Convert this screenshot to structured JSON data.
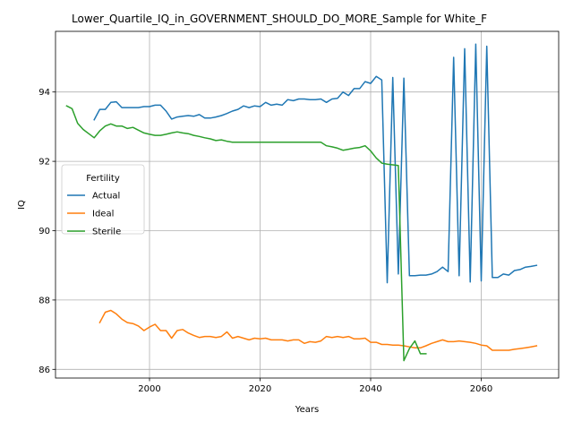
{
  "chart_data": {
    "type": "line",
    "title": "Lower_Quartile_IQ_in_GOVERNMENT_SHOULD_DO_MORE_Sample for White_F",
    "xlabel": "Years",
    "ylabel": "IQ",
    "xlim": [
      1983,
      2074
    ],
    "ylim": [
      85.75,
      95.75
    ],
    "xticks": [
      2000,
      2020,
      2040,
      2060
    ],
    "yticks": [
      86,
      88,
      90,
      92,
      94
    ],
    "grid": true,
    "legend": {
      "title": "Fertility",
      "placement": "center-left"
    },
    "series": [
      {
        "name": "Actual",
        "color": "#1f77b4",
        "x": [
          1990,
          1991,
          1992,
          1993,
          1994,
          1995,
          1996,
          1997,
          1998,
          1999,
          2000,
          2001,
          2002,
          2003,
          2004,
          2005,
          2006,
          2007,
          2008,
          2009,
          2010,
          2011,
          2012,
          2013,
          2014,
          2015,
          2016,
          2017,
          2018,
          2019,
          2020,
          2021,
          2022,
          2023,
          2024,
          2025,
          2026,
          2027,
          2028,
          2029,
          2030,
          2031,
          2032,
          2033,
          2034,
          2035,
          2036,
          2037,
          2038,
          2039,
          2040,
          2041,
          2042,
          2043,
          2044,
          2045,
          2046,
          2047,
          2048,
          2049,
          2050,
          2051,
          2052,
          2053,
          2054,
          2055,
          2056,
          2057,
          2058,
          2059,
          2060,
          2061,
          2062,
          2063,
          2064,
          2065,
          2066,
          2067,
          2068,
          2069,
          2070
        ],
        "y": [
          93.2,
          93.5,
          93.5,
          93.7,
          93.72,
          93.55,
          93.55,
          93.55,
          93.55,
          93.58,
          93.58,
          93.62,
          93.62,
          93.45,
          93.22,
          93.28,
          93.3,
          93.32,
          93.3,
          93.35,
          93.25,
          93.25,
          93.28,
          93.32,
          93.38,
          93.45,
          93.5,
          93.6,
          93.55,
          93.6,
          93.58,
          93.7,
          93.62,
          93.65,
          93.62,
          93.78,
          93.75,
          93.8,
          93.8,
          93.78,
          93.78,
          93.8,
          93.7,
          93.8,
          93.82,
          94.0,
          93.9,
          94.1,
          94.1,
          94.3,
          94.25,
          94.45,
          94.35,
          88.5,
          94.42,
          88.75,
          94.4,
          88.7,
          88.7,
          88.72,
          88.72,
          88.75,
          88.82,
          88.95,
          88.82,
          95.0,
          88.7,
          95.25,
          88.52,
          95.38,
          88.55,
          95.32,
          88.65,
          88.65,
          88.75,
          88.72,
          88.85,
          88.88,
          88.95,
          88.97,
          89.0
        ]
      },
      {
        "name": "Ideal",
        "color": "#ff7f0e",
        "x": [
          1991,
          1992,
          1993,
          1994,
          1995,
          1996,
          1997,
          1998,
          1999,
          2000,
          2001,
          2002,
          2003,
          2004,
          2005,
          2006,
          2007,
          2008,
          2009,
          2010,
          2011,
          2012,
          2013,
          2014,
          2015,
          2016,
          2017,
          2018,
          2019,
          2020,
          2021,
          2022,
          2023,
          2024,
          2025,
          2026,
          2027,
          2028,
          2029,
          2030,
          2031,
          2032,
          2033,
          2034,
          2035,
          2036,
          2037,
          2038,
          2039,
          2040,
          2041,
          2042,
          2043,
          2044,
          2045,
          2046,
          2047,
          2048,
          2049,
          2050,
          2051,
          2052,
          2053,
          2054,
          2055,
          2056,
          2057,
          2058,
          2059,
          2060,
          2061,
          2062,
          2063,
          2064,
          2065,
          2066,
          2067,
          2068,
          2069,
          2070
        ],
        "y": [
          87.35,
          87.65,
          87.7,
          87.6,
          87.45,
          87.35,
          87.32,
          87.25,
          87.12,
          87.22,
          87.3,
          87.12,
          87.12,
          86.9,
          87.12,
          87.15,
          87.05,
          86.98,
          86.92,
          86.95,
          86.95,
          86.92,
          86.95,
          87.08,
          86.9,
          86.95,
          86.9,
          86.85,
          86.9,
          86.88,
          86.9,
          86.85,
          86.85,
          86.85,
          86.82,
          86.85,
          86.85,
          86.75,
          86.8,
          86.78,
          86.82,
          86.95,
          86.92,
          86.95,
          86.92,
          86.95,
          86.88,
          86.88,
          86.9,
          86.78,
          86.78,
          86.72,
          86.72,
          86.7,
          86.7,
          86.68,
          86.65,
          86.62,
          86.62,
          86.68,
          86.75,
          86.8,
          86.85,
          86.8,
          86.8,
          86.82,
          86.8,
          86.78,
          86.75,
          86.7,
          86.68,
          86.55,
          86.55,
          86.55,
          86.55,
          86.58,
          86.6,
          86.62,
          86.65,
          86.68
        ]
      },
      {
        "name": "Sterile",
        "color": "#2ca02c",
        "x": [
          1985,
          1986,
          1987,
          1988,
          1989,
          1990,
          1991,
          1992,
          1993,
          1994,
          1995,
          1996,
          1997,
          1998,
          1999,
          2000,
          2001,
          2002,
          2003,
          2004,
          2005,
          2006,
          2007,
          2008,
          2009,
          2010,
          2011,
          2012,
          2013,
          2014,
          2015,
          2016,
          2017,
          2018,
          2019,
          2020,
          2021,
          2022,
          2023,
          2024,
          2025,
          2026,
          2027,
          2028,
          2029,
          2030,
          2031,
          2032,
          2033,
          2034,
          2035,
          2036,
          2037,
          2038,
          2039,
          2040,
          2041,
          2042,
          2043,
          2044,
          2045,
          2046,
          2047,
          2048,
          2049,
          2050
        ],
        "y": [
          93.6,
          93.52,
          93.1,
          92.92,
          92.8,
          92.68,
          92.88,
          93.02,
          93.08,
          93.02,
          93.02,
          92.95,
          92.98,
          92.9,
          92.82,
          92.78,
          92.75,
          92.75,
          92.78,
          92.82,
          92.85,
          92.82,
          92.8,
          92.75,
          92.72,
          92.68,
          92.65,
          92.6,
          92.62,
          92.58,
          92.55,
          92.55,
          92.55,
          92.55,
          92.55,
          92.55,
          92.55,
          92.55,
          92.55,
          92.55,
          92.55,
          92.55,
          92.55,
          92.55,
          92.55,
          92.55,
          92.55,
          92.45,
          92.42,
          92.38,
          92.32,
          92.35,
          92.38,
          92.4,
          92.45,
          92.3,
          92.1,
          91.95,
          91.92,
          91.9,
          91.88,
          86.25,
          86.6,
          86.82,
          86.45,
          86.45
        ]
      }
    ]
  }
}
